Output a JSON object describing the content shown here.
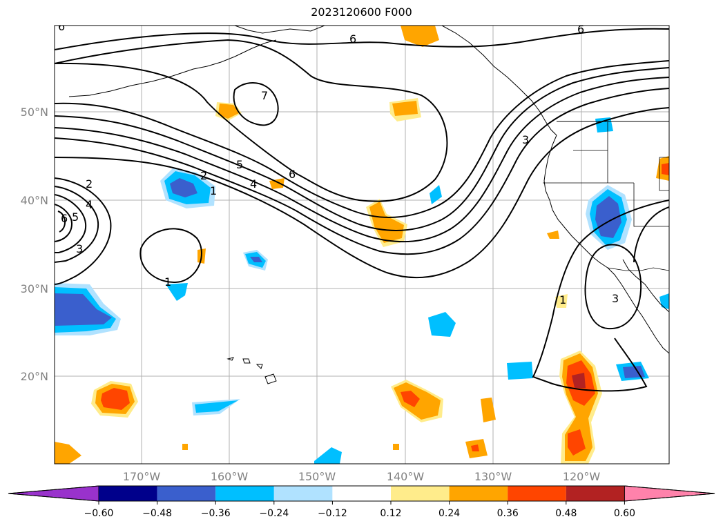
{
  "title": "2023120600 F000",
  "lat_labels": [
    "50°N",
    "40°N",
    "30°N",
    "20°N"
  ],
  "lon_labels": [
    "170°W",
    "160°W",
    "150°W",
    "140°W",
    "130°W",
    "120°W"
  ],
  "colorbar": {
    "ticks": [
      "−0.60",
      "−0.48",
      "−0.36",
      "−0.24",
      "−0.12",
      "0.12",
      "0.24",
      "0.36",
      "0.48",
      "0.60"
    ],
    "colors": [
      "#9932cc",
      "#00008b",
      "#3a5fcd",
      "#00bfff",
      "#b0e2ff",
      "#ffffff",
      "#ffec8b",
      "#ffa500",
      "#ff4500",
      "#b22222",
      "#ff82ab"
    ]
  },
  "contour_labels": {
    "c6_top": "6",
    "c6_topright": "6",
    "c6_topleft": "6",
    "c7_north": "7",
    "c5": "5",
    "c6_mid": "6",
    "c4": "4",
    "c2": "2",
    "c1": "1",
    "c3_coast": "3",
    "c2_left": "2",
    "c4_left": "4",
    "c5_left": "5",
    "c6_left": "6",
    "c3_left": "3",
    "c1_south": "1",
    "c1_baja": "1",
    "c3_baja": "3"
  }
}
